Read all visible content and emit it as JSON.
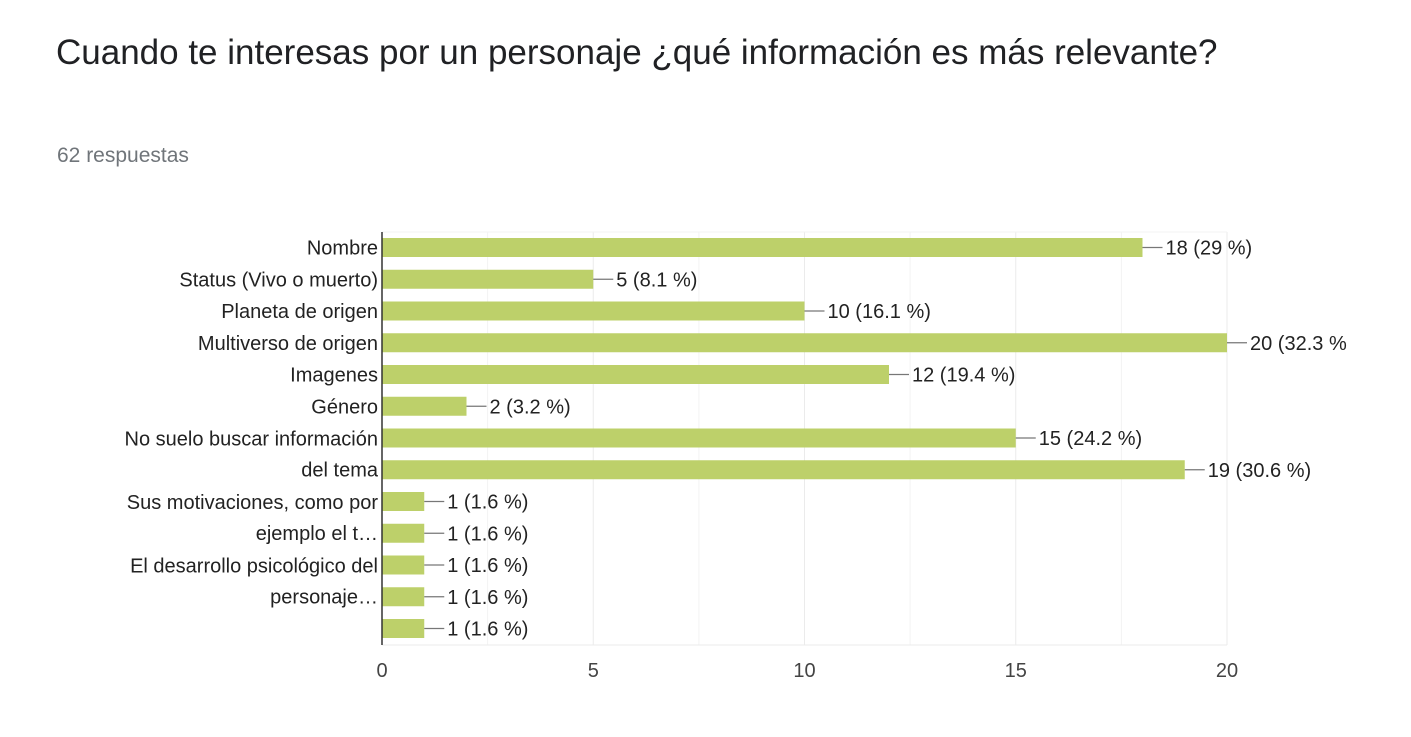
{
  "title": "Cuando te interesas por un personaje ¿qué información es más relevante?",
  "subtitle": "62 respuestas",
  "colors": {
    "bar": "#bdd06a",
    "grid": "#ebebeb",
    "axis": "#333333",
    "text": "#222222",
    "tick": "#444444"
  },
  "chart_data": {
    "type": "bar",
    "orientation": "horizontal",
    "categories": [
      "Nombre",
      "Status (Vivo o muerto)",
      "Planeta de origen",
      "Multiverso de origen",
      "Imagenes",
      "Género",
      "No suelo buscar información del tema",
      "",
      "Sus motivaciones, como por ejemplo el t…",
      "",
      "El desarrollo psicológico del personaje…",
      "",
      ""
    ],
    "category_labels": [
      {
        "lines": [
          "Nombre"
        ]
      },
      {
        "lines": [
          "Status (Vivo o muerto)"
        ]
      },
      {
        "lines": [
          "Planeta de origen"
        ]
      },
      {
        "lines": [
          "Multiverso de origen"
        ]
      },
      {
        "lines": [
          "Imagenes"
        ]
      },
      {
        "lines": [
          "Género"
        ]
      },
      {
        "lines": [
          "No suelo buscar información",
          "del tema"
        ]
      },
      {
        "lines": [
          "Sus motivaciones, como por",
          "ejemplo el t…"
        ]
      },
      {
        "lines": [
          "El desarrollo psicológico del",
          "personaje…"
        ]
      }
    ],
    "values": [
      18,
      5,
      10,
      20,
      12,
      2,
      15,
      19,
      1,
      1,
      1,
      1,
      1
    ],
    "data_labels": [
      "18 (29 %)",
      "5 (8.1 %)",
      "10 (16.1 %)",
      "20 (32.3 %",
      "12 (19.4 %)",
      "2 (3.2 %)",
      "15 (24.2 %)",
      "19 (30.6 %)",
      "1 (1.6 %)",
      "1 (1.6 %)",
      "1 (1.6 %)",
      "1 (1.6 %)",
      "1 (1.6 %)"
    ],
    "xlim": [
      0,
      20
    ],
    "xticks": [
      0,
      5,
      10,
      15,
      20
    ],
    "xtick_labels": [
      "0",
      "5",
      "10",
      "15",
      "20"
    ],
    "minor_grid": [
      2.5,
      7.5,
      12.5,
      17.5
    ],
    "grid": true
  }
}
